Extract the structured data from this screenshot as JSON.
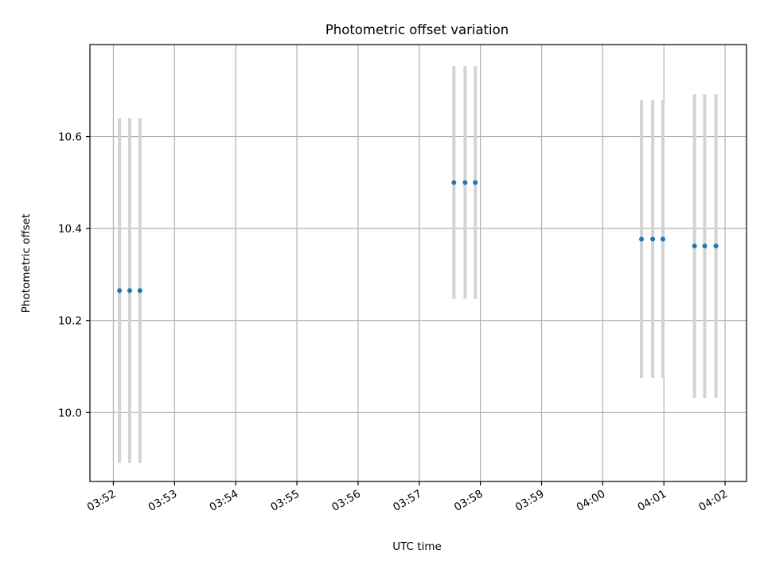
{
  "chart_data": {
    "type": "scatter",
    "title": "Photometric offset variation",
    "xlabel": "UTC time",
    "ylabel": "Photometric offset",
    "x_is_time": true,
    "xlim": [
      "03:51:37",
      "04:02:21"
    ],
    "ylim": [
      9.85,
      10.8
    ],
    "xticks": [
      "03:52",
      "03:53",
      "03:54",
      "03:55",
      "03:56",
      "03:57",
      "03:58",
      "03:59",
      "04:00",
      "04:01",
      "04:02"
    ],
    "yticks": [
      10.0,
      10.2,
      10.4,
      10.6
    ],
    "ytick_labels": [
      "10.0",
      "10.2",
      "10.4",
      "10.6"
    ],
    "grid": true,
    "legend": "none",
    "colors": {
      "points": "#1f77b4",
      "errorbars": "#d3d3d3",
      "grid": "#b0b0b0",
      "axes": "#000000"
    },
    "series": [
      {
        "points": [
          {
            "x": "03:52:06",
            "y": 10.265,
            "yerr": 0.375
          },
          {
            "x": "03:52:16",
            "y": 10.265,
            "yerr": 0.375
          },
          {
            "x": "03:52:26",
            "y": 10.265,
            "yerr": 0.375
          },
          {
            "x": "03:57:34",
            "y": 10.5,
            "yerr": 0.253
          },
          {
            "x": "03:57:45",
            "y": 10.5,
            "yerr": 0.253
          },
          {
            "x": "03:57:55",
            "y": 10.5,
            "yerr": 0.253
          },
          {
            "x": "04:00:38",
            "y": 10.377,
            "yerr": 0.302
          },
          {
            "x": "04:00:49",
            "y": 10.377,
            "yerr": 0.302
          },
          {
            "x": "04:00:59",
            "y": 10.377,
            "yerr": 0.302
          },
          {
            "x": "04:01:30",
            "y": 10.362,
            "yerr": 0.33
          },
          {
            "x": "04:01:40",
            "y": 10.362,
            "yerr": 0.33
          },
          {
            "x": "04:01:51",
            "y": 10.362,
            "yerr": 0.33
          }
        ]
      }
    ]
  }
}
